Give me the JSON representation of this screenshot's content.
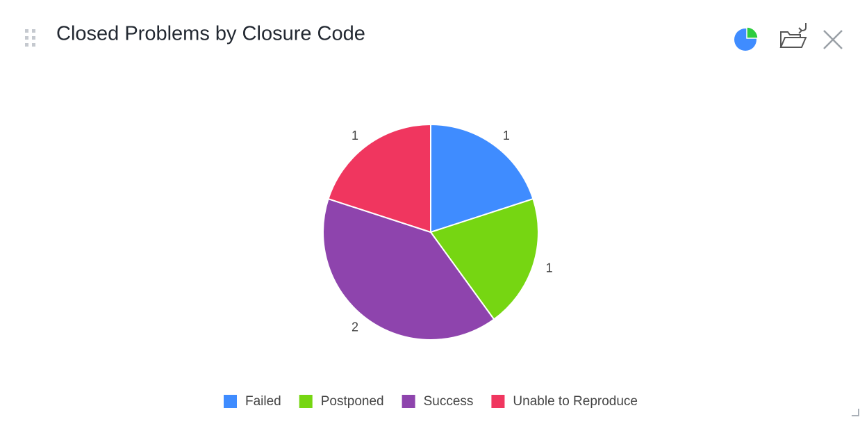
{
  "chart_data": {
    "type": "pie",
    "title": "Closed Problems by Closure Code",
    "categories": [
      "Failed",
      "Postponed",
      "Success",
      "Unable to Reproduce"
    ],
    "values": [
      1,
      1,
      2,
      1
    ],
    "colors": [
      "#3f8cff",
      "#76d612",
      "#8e44ad",
      "#f0365f"
    ]
  }
}
